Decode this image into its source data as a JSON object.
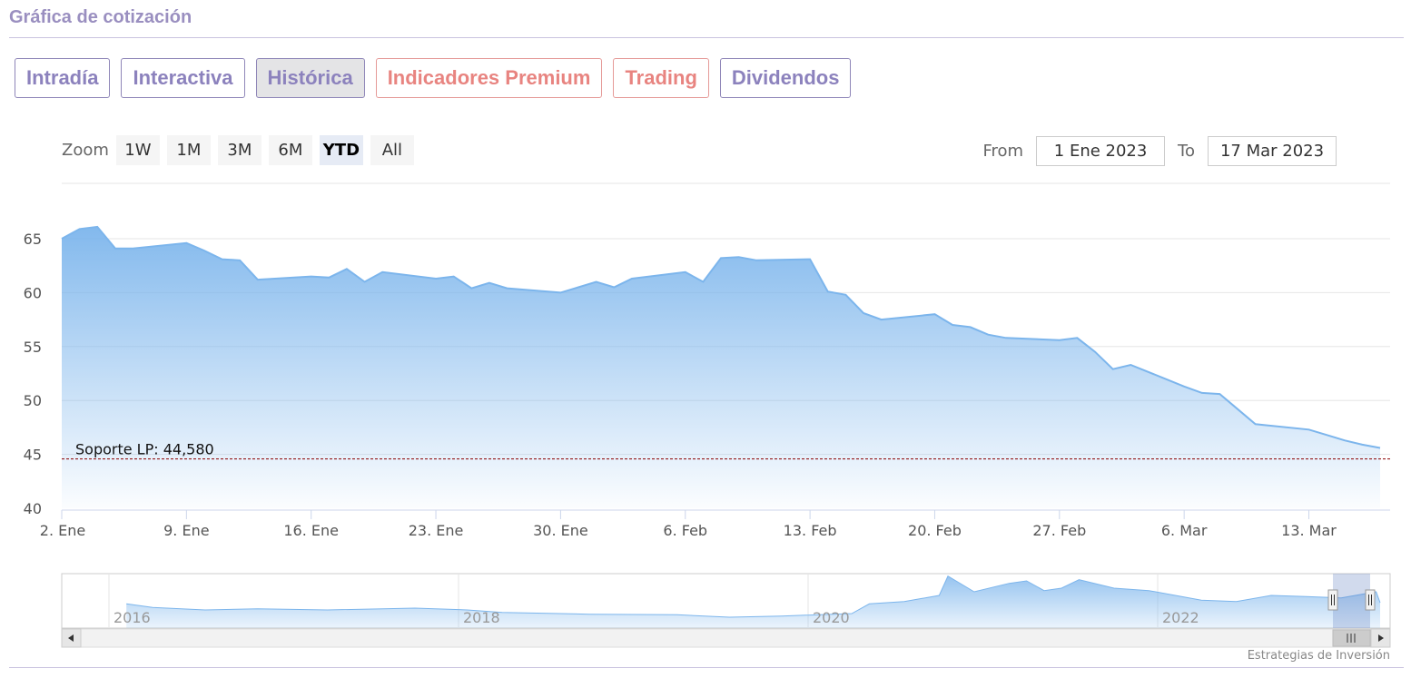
{
  "header": {
    "title": "Gráfica de cotización"
  },
  "tabs": [
    {
      "label": "Intradía",
      "style": "purple",
      "active": false
    },
    {
      "label": "Interactiva",
      "style": "purple",
      "active": false
    },
    {
      "label": "Histórica",
      "style": "purple",
      "active": true
    },
    {
      "label": "Indicadores Premium",
      "style": "red",
      "active": false
    },
    {
      "label": "Trading",
      "style": "red",
      "active": false
    },
    {
      "label": "Dividendos",
      "style": "purple",
      "active": false
    }
  ],
  "zoom": {
    "label": "Zoom",
    "buttons": [
      "1W",
      "1M",
      "3M",
      "6M",
      "YTD",
      "All"
    ],
    "selected": "YTD"
  },
  "range": {
    "from_label": "From",
    "from_value": "1 Ene 2023",
    "to_label": "To",
    "to_value": "17 Mar 2023"
  },
  "credit": "Estrategias de Inversión",
  "colors": {
    "line": "#7cb5ec",
    "support": "#8b0000",
    "accent_purple": "#8c82bd",
    "accent_red": "#e88480"
  },
  "chart_data": {
    "type": "area",
    "ylim": [
      40,
      67
    ],
    "yticks": [
      40,
      45,
      50,
      55,
      60,
      65
    ],
    "xlim": [
      "2023-01-02",
      "2023-03-17"
    ],
    "xticks": [
      {
        "date": "2023-01-02",
        "label": "2. Ene"
      },
      {
        "date": "2023-01-09",
        "label": "9. Ene"
      },
      {
        "date": "2023-01-16",
        "label": "16. Ene"
      },
      {
        "date": "2023-01-23",
        "label": "23. Ene"
      },
      {
        "date": "2023-01-30",
        "label": "30. Ene"
      },
      {
        "date": "2023-02-06",
        "label": "6. Feb"
      },
      {
        "date": "2023-02-13",
        "label": "13. Feb"
      },
      {
        "date": "2023-02-20",
        "label": "20. Feb"
      },
      {
        "date": "2023-02-27",
        "label": "27. Feb"
      },
      {
        "date": "2023-03-06",
        "label": "6. Mar"
      },
      {
        "date": "2023-03-13",
        "label": "13. Mar"
      }
    ],
    "series": [
      {
        "points": [
          [
            "2023-01-02",
            65.0
          ],
          [
            "2023-01-03",
            65.9
          ],
          [
            "2023-01-04",
            66.1
          ],
          [
            "2023-01-05",
            64.1
          ],
          [
            "2023-01-06",
            64.1
          ],
          [
            "2023-01-09",
            64.6
          ],
          [
            "2023-01-10",
            63.9
          ],
          [
            "2023-01-11",
            63.1
          ],
          [
            "2023-01-12",
            63.0
          ],
          [
            "2023-01-13",
            61.2
          ],
          [
            "2023-01-16",
            61.5
          ],
          [
            "2023-01-17",
            61.4
          ],
          [
            "2023-01-18",
            62.2
          ],
          [
            "2023-01-19",
            61.0
          ],
          [
            "2023-01-20",
            61.9
          ],
          [
            "2023-01-23",
            61.3
          ],
          [
            "2023-01-24",
            61.5
          ],
          [
            "2023-01-25",
            60.4
          ],
          [
            "2023-01-26",
            60.9
          ],
          [
            "2023-01-27",
            60.4
          ],
          [
            "2023-01-30",
            60.0
          ],
          [
            "2023-01-31",
            60.5
          ],
          [
            "2023-02-01",
            61.0
          ],
          [
            "2023-02-02",
            60.5
          ],
          [
            "2023-02-03",
            61.3
          ],
          [
            "2023-02-06",
            61.9
          ],
          [
            "2023-02-07",
            61.0
          ],
          [
            "2023-02-08",
            63.2
          ],
          [
            "2023-02-09",
            63.3
          ],
          [
            "2023-02-10",
            63.0
          ],
          [
            "2023-02-13",
            63.1
          ],
          [
            "2023-02-14",
            60.1
          ],
          [
            "2023-02-15",
            59.8
          ],
          [
            "2023-02-16",
            58.1
          ],
          [
            "2023-02-17",
            57.5
          ],
          [
            "2023-02-20",
            58.0
          ],
          [
            "2023-02-21",
            57.0
          ],
          [
            "2023-02-22",
            56.8
          ],
          [
            "2023-02-23",
            56.1
          ],
          [
            "2023-02-24",
            55.8
          ],
          [
            "2023-02-27",
            55.6
          ],
          [
            "2023-02-28",
            55.8
          ],
          [
            "2023-03-01",
            54.5
          ],
          [
            "2023-03-02",
            52.9
          ],
          [
            "2023-03-03",
            53.3
          ],
          [
            "2023-03-06",
            51.3
          ],
          [
            "2023-03-07",
            50.7
          ],
          [
            "2023-03-08",
            50.6
          ],
          [
            "2023-03-09",
            49.2
          ],
          [
            "2023-03-10",
            47.8
          ],
          [
            "2023-03-13",
            47.3
          ],
          [
            "2023-03-14",
            46.8
          ],
          [
            "2023-03-15",
            46.3
          ],
          [
            "2023-03-16",
            45.9
          ],
          [
            "2023-03-17",
            45.6
          ]
        ]
      }
    ],
    "plot_lines": [
      {
        "value": 44.58,
        "label": "Soporte LP: 44,580"
      }
    ],
    "navigator": {
      "year_labels": [
        "2016",
        "2018",
        "2020",
        "2022"
      ],
      "trend": [
        [
          2015.85,
          45
        ],
        [
          2016.0,
          42
        ],
        [
          2016.3,
          40
        ],
        [
          2016.6,
          41
        ],
        [
          2017.0,
          40
        ],
        [
          2017.5,
          41.5
        ],
        [
          2017.8,
          40
        ],
        [
          2018.0,
          38
        ],
        [
          2018.5,
          36.5
        ],
        [
          2019.0,
          36
        ],
        [
          2019.3,
          34
        ],
        [
          2019.6,
          35
        ],
        [
          2020.0,
          37
        ],
        [
          2020.1,
          45
        ],
        [
          2020.3,
          47
        ],
        [
          2020.5,
          52
        ],
        [
          2020.55,
          68
        ],
        [
          2020.7,
          55
        ],
        [
          2020.9,
          62
        ],
        [
          2021.0,
          64
        ],
        [
          2021.1,
          56
        ],
        [
          2021.2,
          58
        ],
        [
          2021.3,
          65
        ],
        [
          2021.5,
          58
        ],
        [
          2021.7,
          56
        ],
        [
          2022.0,
          48
        ],
        [
          2022.2,
          47
        ],
        [
          2022.4,
          52
        ],
        [
          2022.6,
          51
        ],
        [
          2022.8,
          50
        ],
        [
          2023.0,
          55
        ],
        [
          2023.2,
          46
        ]
      ]
    }
  }
}
